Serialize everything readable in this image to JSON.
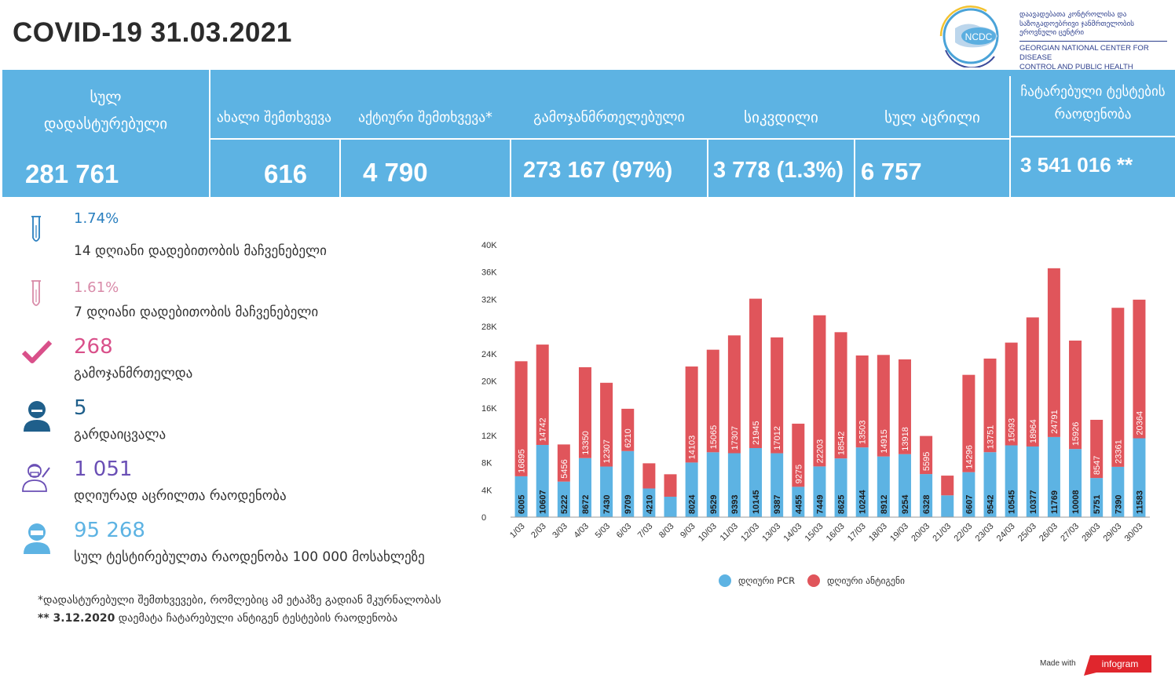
{
  "header": {
    "title": "COVID-19 31.03.2021"
  },
  "logo": {
    "acronym": "NCDC",
    "name_ka": [
      "დაავადებათა კონტროლისა და",
      "საზოგადოებრივი ჯანმრთელობის",
      "ეროვნული ცენტრი"
    ],
    "name_en": [
      "GEORGIAN NATIONAL CENTER FOR DISEASE",
      "CONTROL AND PUBLIC HEALTH"
    ]
  },
  "banner": {
    "total_label_1": "სულ",
    "total_label_2": "დადასტურებული",
    "total_value": "281 761",
    "new_label": "ახალი შემთხვევა",
    "new_value": "616",
    "active_label": "აქტიური შემთხვევა*",
    "active_value": "4 790",
    "recovered_label": "გამოჯანმრთელებული",
    "recovered_value": "273 167  (97%)",
    "deaths_label": "სიკვდილი",
    "deaths_value": "3 778 (1.3%)",
    "vaccinated_label": "სულ აცრილი",
    "vaccinated_value": "6 757",
    "tests_label_1": "ჩატარებული ტესტების",
    "tests_label_2": "რაოდენობა",
    "tests_value": "3 541 016 **"
  },
  "stats": [
    {
      "value": "1.74%",
      "label": "14  დღიანი დადებითობის მაჩვენებელი",
      "icon": "test-tube-icon",
      "color": "#2a7fbf"
    },
    {
      "value": "1.61%",
      "label": "7 დღიანი დადებითობის მაჩვენებელი",
      "icon": "test-tube-icon",
      "color": "#d88aa8"
    },
    {
      "value": "268",
      "label": "გამოჯანმრთელდა",
      "icon": "checkmark-icon",
      "color": "#d9508a"
    },
    {
      "value": "5",
      "label": "გარდაიცვალა",
      "icon": "person-icon",
      "color": "#1f5f8b"
    },
    {
      "value": "1 051",
      "label": " დღიურად აცრილთა რაოდენობა",
      "icon": "vaccinator-icon",
      "color": "#6a4fb5"
    },
    {
      "value": "95 268",
      "label": " სულ ტესტირებულთა რაოდენობა 100 000 მოსახლეზე",
      "icon": "masked-person-icon",
      "color": "#5db3e3"
    }
  ],
  "footnotes": {
    "note1": "*დადასტურებული შემთხვევები, რომლებიც ამ ეტაპზე გადიან მკურნალობას",
    "note2_bold": "** 3.12.2020",
    "note2_rest": " დაემატა ჩატარებული ანტიგენ ტესტების რაოდენობა"
  },
  "credit": {
    "made_with": "Made with",
    "brand": "infogram"
  },
  "colors": {
    "banner": "#5db3e3",
    "pcr": "#5db3e3",
    "antigen": "#e0555b"
  },
  "chart_data": {
    "type": "bar",
    "stacked": true,
    "categories": [
      "1/03",
      "2/03",
      "3/03",
      "4/03",
      "5/03",
      "6/03",
      "7/03",
      "8/03",
      "9/03",
      "10/03",
      "11/03",
      "12/03",
      "13/03",
      "14/03",
      "15/03",
      "16/03",
      "17/03",
      "18/03",
      "19/03",
      "20/03",
      "21/03",
      "22/03",
      "23/03",
      "24/03",
      "25/03",
      "26/03",
      "27/03",
      "28/03",
      "29/03",
      "30/03"
    ],
    "series": [
      {
        "name": "დღიური PCR",
        "color": "#5db3e3",
        "values": [
          6005,
          10607,
          5222,
          8672,
          7430,
          9709,
          4210,
          3000,
          8024,
          9529,
          9393,
          10145,
          9387,
          4455,
          7449,
          8625,
          10244,
          8912,
          9254,
          6328,
          3200,
          6607,
          9542,
          10545,
          10377,
          11769,
          10008,
          5751,
          7390,
          11583
        ],
        "labels": [
          "6005",
          "10607",
          "5222",
          "8672",
          "7430",
          "9709",
          "4210",
          "",
          "8024",
          "9529",
          "9393",
          "10145",
          "9387",
          "4455",
          "7449",
          "8625",
          "10244",
          "8912",
          "9254",
          "6328",
          "",
          "6607",
          "9542",
          "10545",
          "10377",
          "11769",
          "10008",
          "5751",
          "7390",
          "11583"
        ]
      },
      {
        "name": "დღიური ანტიგენი",
        "color": "#e0555b",
        "values": [
          16895,
          14742,
          5456,
          13350,
          12307,
          6210,
          3700,
          3300,
          14103,
          15065,
          17307,
          21945,
          17012,
          9275,
          22203,
          18542,
          13503,
          14915,
          13918,
          5595,
          2900,
          14296,
          13751,
          15093,
          18964,
          24791,
          15926,
          8547,
          23361,
          20364
        ],
        "labels": [
          "16895",
          "14742",
          "5456",
          "13350",
          "12307",
          "6210",
          "",
          "",
          "14103",
          "15065",
          "17307",
          "21945",
          "17012",
          "9275",
          "22203",
          "18542",
          "13503",
          "14915",
          "13918",
          "5595",
          "",
          "14296",
          "13751",
          "15093",
          "18964",
          "24791",
          "15926",
          "8547",
          "23361",
          "20364"
        ]
      }
    ],
    "yticks": [
      "0",
      "4K",
      "8K",
      "12K",
      "16K",
      "20K",
      "24K",
      "28K",
      "32K",
      "36K",
      "40K"
    ],
    "ylim": [
      0,
      40000
    ],
    "legend_position": "bottom"
  }
}
